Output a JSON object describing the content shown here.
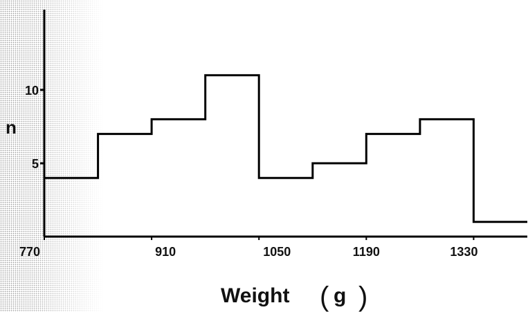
{
  "chart_data": {
    "type": "bar",
    "style": "histogram-step",
    "bin_edges": [
      770,
      840,
      910,
      980,
      1050,
      1120,
      1190,
      1260,
      1330,
      1400
    ],
    "values": [
      4,
      7,
      8,
      11,
      4,
      5,
      7,
      8,
      1
    ],
    "xticks": [
      "770",
      "910",
      "1050",
      "1190",
      "1330"
    ],
    "yticks": [
      "5",
      "10"
    ],
    "xlabel": "Weight",
    "xlabel_unit": "g",
    "ylabel": "n",
    "xlim": [
      770,
      1400
    ],
    "ylim": [
      0,
      15
    ],
    "grid": false,
    "colors": {
      "line": "#000000",
      "background": "#ffffff"
    }
  }
}
